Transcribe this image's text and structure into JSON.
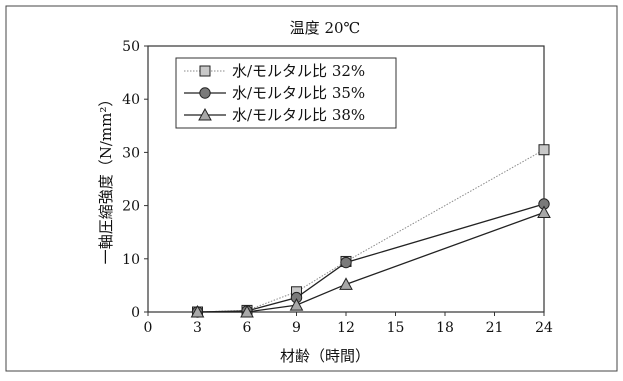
{
  "chart_data": {
    "type": "line",
    "title": "温度 20℃",
    "xlabel": "材齢（時間）",
    "ylabel": "一軸圧縮強度（N/mm²）",
    "xlim": [
      0,
      24
    ],
    "ylim": [
      0,
      50
    ],
    "x_ticks": [
      0,
      3,
      6,
      9,
      12,
      15,
      18,
      21,
      24
    ],
    "y_ticks": [
      0,
      10,
      20,
      30,
      40,
      50
    ],
    "grid": true,
    "legend_position": "top-left",
    "series": [
      {
        "name": "水/モルタル比 32%",
        "marker": "square",
        "line_style": "dotted",
        "marker_fill": "#c8c8c8",
        "line_color": "#8a8a8a",
        "x": [
          3,
          6,
          9,
          12,
          24
        ],
        "y": [
          0,
          0.3,
          3.8,
          9.5,
          30.5
        ]
      },
      {
        "name": "水/モルタル比 35%",
        "marker": "circle",
        "line_style": "solid",
        "marker_fill": "#7a7a7a",
        "line_color": "#222222",
        "x": [
          3,
          6,
          9,
          12,
          24
        ],
        "y": [
          0,
          0.2,
          2.7,
          9.3,
          20.3
        ]
      },
      {
        "name": "水/モルタル比 38%",
        "marker": "triangle",
        "line_style": "solid",
        "marker_fill": "#a8a8a8",
        "line_color": "#222222",
        "x": [
          3,
          6,
          9,
          12,
          24
        ],
        "y": [
          0,
          0,
          1.3,
          5.2,
          18.7
        ]
      }
    ]
  }
}
